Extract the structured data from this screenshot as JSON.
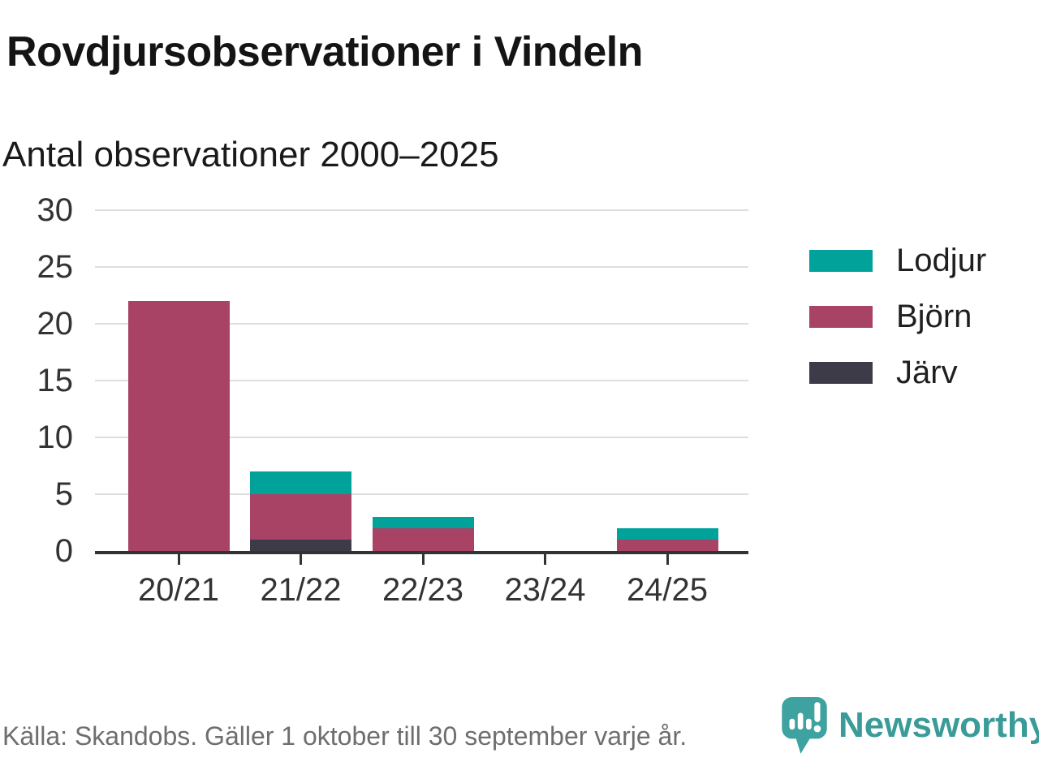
{
  "header": {
    "title": "Rovdjursobservationer i Vindeln",
    "subtitle": "Antal observationer 2000–2025"
  },
  "chart_data": {
    "type": "bar",
    "stacked": true,
    "title": "Rovdjursobservationer i Vindeln",
    "subtitle": "Antal observationer 2000–2025",
    "categories": [
      "20/21",
      "21/22",
      "22/23",
      "23/24",
      "24/25"
    ],
    "series": [
      {
        "name": "Järv",
        "color": "#3D3B48",
        "values": [
          0,
          1,
          0,
          0,
          0
        ]
      },
      {
        "name": "Björn",
        "color": "#A84365",
        "values": [
          22,
          4,
          2,
          0,
          1
        ]
      },
      {
        "name": "Lodjur",
        "color": "#00A29A",
        "values": [
          0,
          2,
          1,
          0,
          1
        ]
      }
    ],
    "totals": [
      22,
      7,
      3,
      0,
      2
    ],
    "legend_order": [
      "Lodjur",
      "Björn",
      "Järv"
    ],
    "legend_position": "right",
    "ylim": [
      0,
      30
    ],
    "yticks": [
      0,
      5,
      10,
      15,
      20,
      25,
      30
    ],
    "grid": "horizontal",
    "grid_color": "#DEDEDE",
    "axis_color": "#333333"
  },
  "footer": {
    "source": "Källa: Skandobs. Gäller 1 oktober till 30 september varje år.",
    "brand": "Newsworthy",
    "brand_color": "#3A9B99"
  }
}
